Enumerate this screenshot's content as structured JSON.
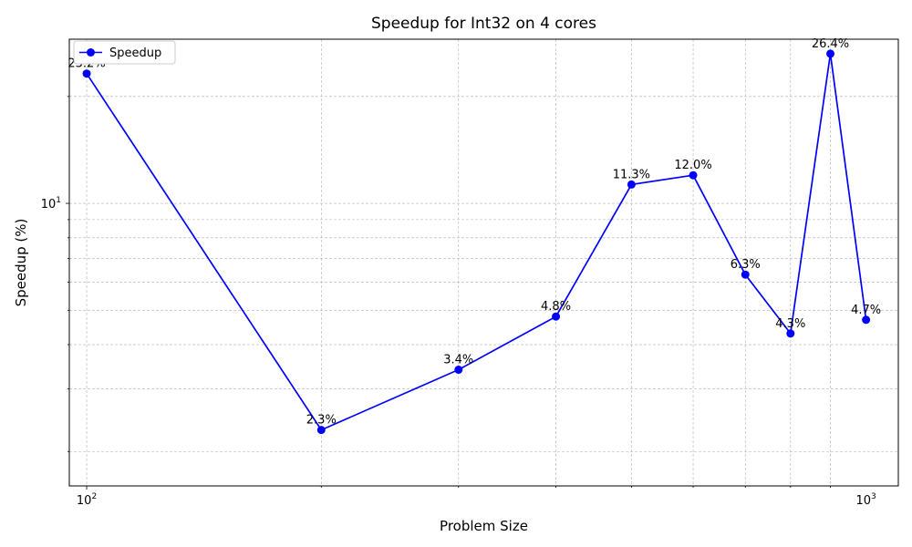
{
  "chart_data": {
    "type": "line",
    "title": "Speedup for Int32 on 4 cores",
    "xlabel": "Problem Size",
    "ylabel": "Speedup (%)",
    "x_scale": "log",
    "y_scale": "log",
    "xlim": [
      95,
      1100
    ],
    "ylim": [
      1.6,
      29
    ],
    "grid": true,
    "legend_position": "upper-left",
    "x_ticks": [
      {
        "value": 100,
        "base": "10",
        "exp": "2"
      },
      {
        "value": 1000,
        "base": "10",
        "exp": "3"
      }
    ],
    "y_ticks": [
      {
        "value": 10,
        "base": "10",
        "exp": "1"
      }
    ],
    "series": [
      {
        "name": "Speedup",
        "color": "#0000ff",
        "x": [
          100,
          200,
          300,
          400,
          500,
          600,
          700,
          800,
          900,
          1000
        ],
        "y": [
          23.2,
          2.3,
          3.4,
          4.8,
          11.3,
          12.0,
          6.3,
          4.3,
          26.4,
          4.7
        ],
        "labels": [
          "23.2%",
          "2.3%",
          "3.4%",
          "4.8%",
          "11.3%",
          "12.0%",
          "6.3%",
          "4.3%",
          "26.4%",
          "4.7%"
        ]
      }
    ]
  }
}
